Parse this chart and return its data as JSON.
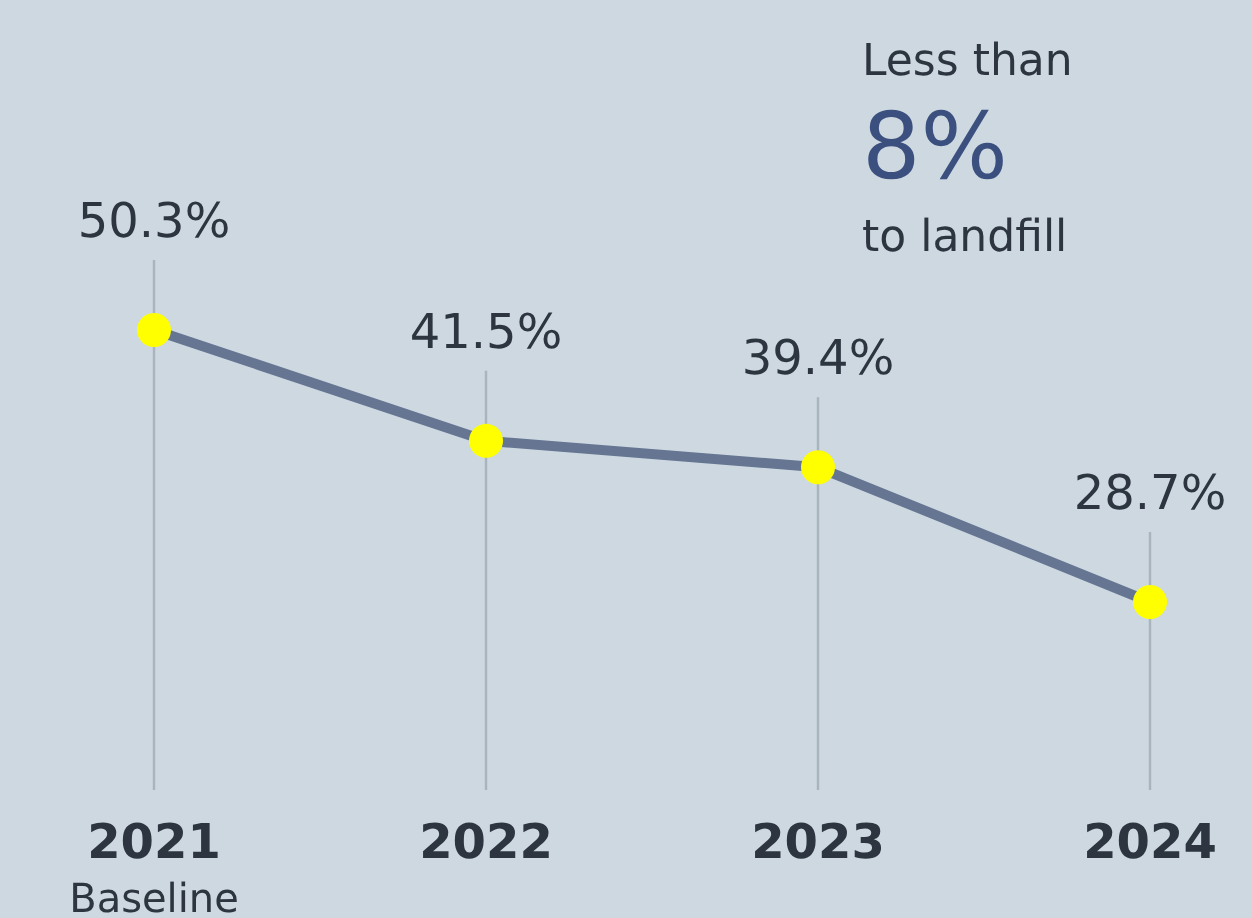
{
  "chart_data": {
    "type": "line",
    "categories": [
      "2021",
      "2022",
      "2023",
      "2024"
    ],
    "series": [
      {
        "color": "#657592",
        "values": [
          50.3,
          41.5,
          39.4,
          28.7
        ],
        "value_labels": [
          "50.3%",
          "41.5%",
          "39.4%",
          "28.7%"
        ]
      }
    ],
    "marker": "circle",
    "line_style": "solid",
    "grid": "x",
    "annotations": [
      "Less than",
      "8%",
      "to landfill",
      "Baseline"
    ]
  }
}
